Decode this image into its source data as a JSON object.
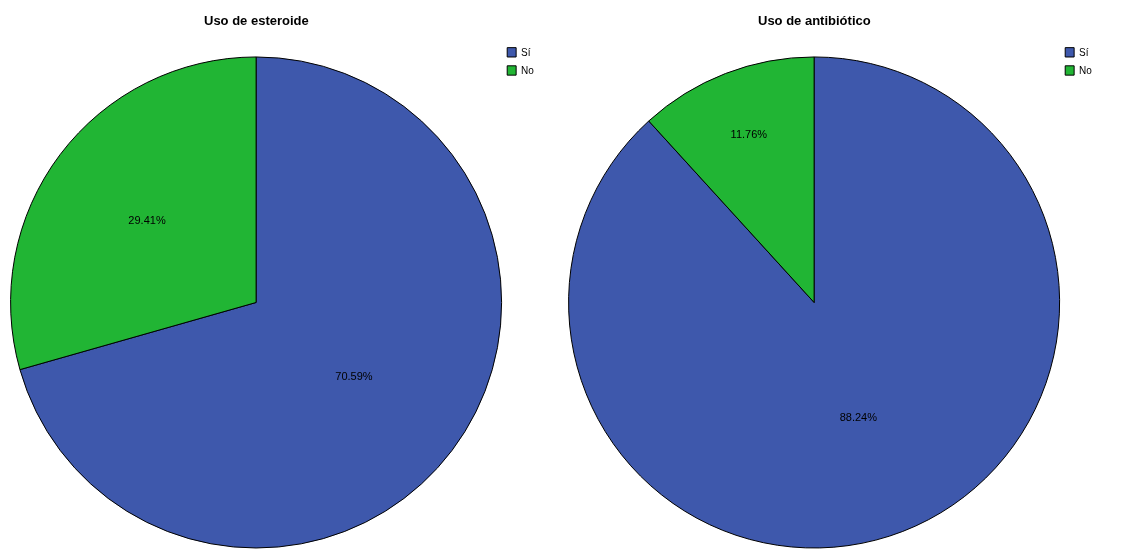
{
  "chart_data": [
    {
      "type": "pie",
      "title": "Uso de esteroide",
      "categories": [
        "Sí",
        "No"
      ],
      "values": [
        70.59,
        29.41
      ],
      "colors": [
        "#3e58ac",
        "#21b534"
      ],
      "value_labels": [
        "70.59%",
        "29.41%"
      ],
      "legend": "top right"
    },
    {
      "type": "pie",
      "title": "Uso de antibiótico",
      "categories": [
        "Sí",
        "No"
      ],
      "values": [
        88.24,
        11.76
      ],
      "colors": [
        "#3e58ac",
        "#21b534"
      ],
      "value_labels": [
        "88.24%",
        "11.76%"
      ],
      "legend": "top right"
    }
  ]
}
